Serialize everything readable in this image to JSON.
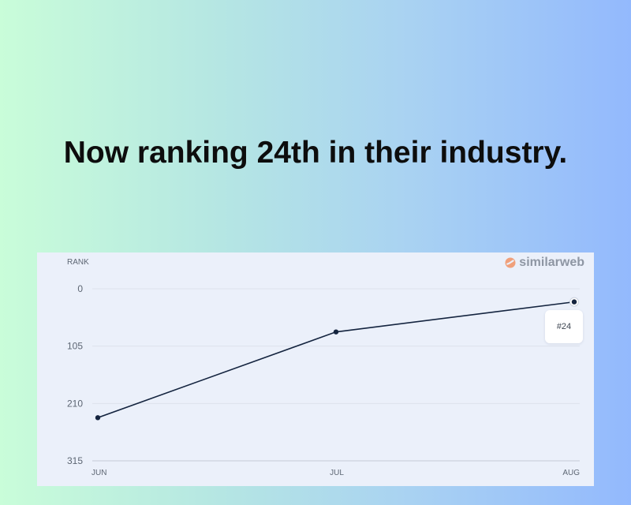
{
  "headline": "Now ranking 24th in their industry.",
  "brand": {
    "name": "similarweb",
    "icon": "similarweb-logo-icon",
    "icon_color": "#f0a07b"
  },
  "tooltip": {
    "label": "#24"
  },
  "colors": {
    "line": "#14243f",
    "grid": "#dde2ec",
    "axis": "#c4cad6"
  },
  "chart_data": {
    "type": "line",
    "ylabel": "RANK",
    "categories": [
      "JUN",
      "JUL",
      "AUG"
    ],
    "series": [
      {
        "values": [
          236,
          79,
          24
        ]
      }
    ],
    "ylim": [
      0,
      315
    ],
    "y_inverted": true,
    "yticks": [
      "0",
      "105",
      "210",
      "315"
    ],
    "grid": true
  }
}
